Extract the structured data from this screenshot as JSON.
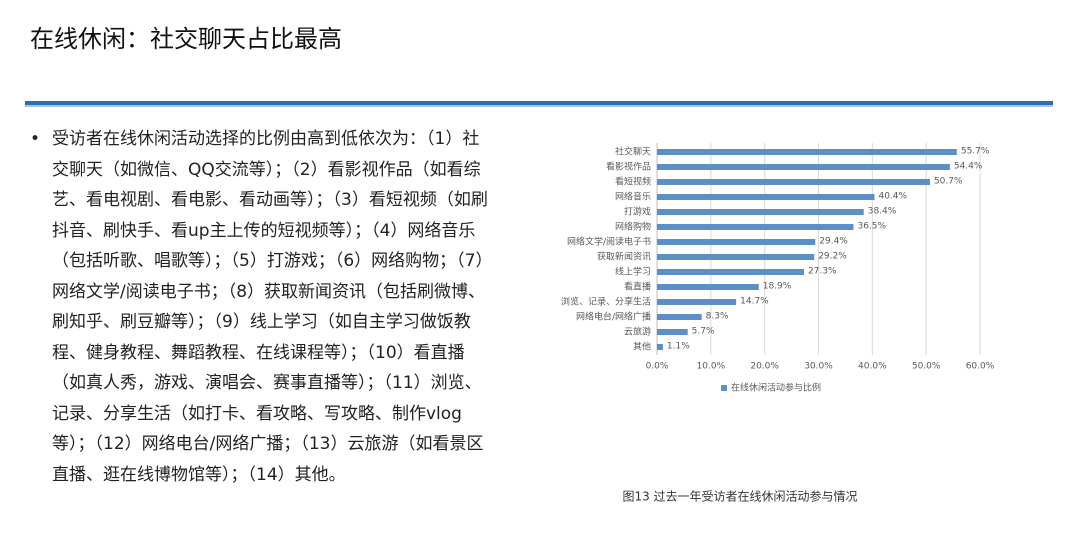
{
  "slide": {
    "title": "在线休闲：社交聊天占比最高",
    "bullet": "受访者在线休闲活动选择的比例由高到低依次为：（1）社交聊天（如微信、QQ交流等）；（2）看影视作品（如看综艺、看电视剧、看电影、看动画等）；（3）看短视频（如刷抖音、刷快手、看up主上传的短视频等）；（4）网络音乐（包括听歌、唱歌等）；（5）打游戏；（6）网络购物；（7）网络文学/阅读电子书；（8）获取新闻资讯（包括刷微博、刷知乎、刷豆瓣等）；（9）线上学习（如自主学习做饭教程、健身教程、舞蹈教程、在线课程等）；（10）看直播（如真人秀，游戏、演唱会、赛事直播等）；（11）浏览、记录、分享生活（如打卡、看攻略、写攻略、制作vlog等）；（12）网络电台/网络广播；（13）云旅游（如看景区直播、逛在线博物馆等）；（14）其他。"
  },
  "chart_data": {
    "type": "hbar",
    "caption": "图13 过去一年受访者在线休闲活动参与情况",
    "categories": [
      "社交聊天",
      "看影视作品",
      "看短视频",
      "网络音乐",
      "打游戏",
      "网络购物",
      "网络文学/阅读电子书",
      "获取新闻资讯",
      "线上学习",
      "看直播",
      "浏览、记录、分享生活",
      "网络电台/网络广播",
      "云旅游",
      "其他"
    ],
    "series": [
      {
        "name": "在线休闲活动参与比例",
        "color": "#5b8fc7",
        "values": [
          55.7,
          54.4,
          50.7,
          40.4,
          38.4,
          36.5,
          29.4,
          29.2,
          27.3,
          18.9,
          14.7,
          8.3,
          5.7,
          1.1
        ],
        "value_labels": [
          "55.7%",
          "54.4%",
          "50.7%",
          "40.4%",
          "38.4%",
          "36.5%",
          "29.4%",
          "29.2%",
          "27.3%",
          "18.9%",
          "14.7%",
          "8.3%",
          "5.7%",
          "1.1%"
        ]
      }
    ],
    "xlim": [
      0,
      60
    ],
    "xticks": [
      {
        "value": 0,
        "label": "0.0%"
      },
      {
        "value": 10,
        "label": "10.0%"
      },
      {
        "value": 20,
        "label": "20.0%"
      },
      {
        "value": 30,
        "label": "30.0%"
      },
      {
        "value": 40,
        "label": "40.0%"
      },
      {
        "value": 50,
        "label": "50.0%"
      },
      {
        "value": 60,
        "label": "60.0%"
      }
    ],
    "grid": true,
    "legend": "bottom"
  }
}
